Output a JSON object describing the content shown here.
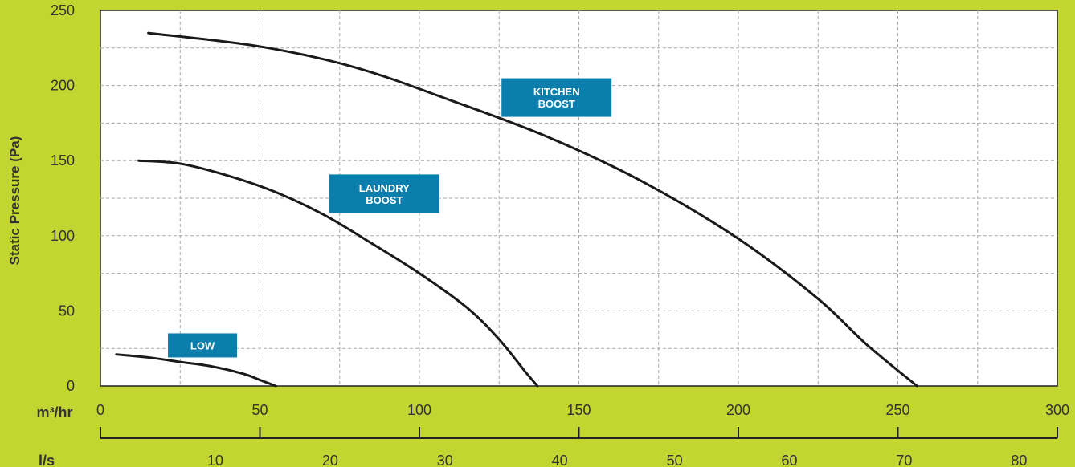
{
  "chart_data": {
    "type": "line",
    "ylabel": "Static Pressure (Pa)",
    "ylim": [
      0,
      250
    ],
    "yticks": [
      0,
      50,
      100,
      150,
      200,
      250
    ],
    "x_primary_unit": "m³/hr",
    "xlim": [
      0,
      300
    ],
    "xticks": [
      0,
      50,
      100,
      150,
      200,
      250,
      300
    ],
    "x_secondary_unit": "l/s",
    "x_secondary_ticks": [
      10,
      20,
      30,
      40,
      50,
      60,
      70,
      80
    ],
    "grid": true,
    "series": [
      {
        "name": "LOW",
        "label_lines": [
          "LOW"
        ],
        "label_at": [
          32,
          27
        ],
        "points": [
          [
            5,
            21
          ],
          [
            15,
            19
          ],
          [
            25,
            16
          ],
          [
            35,
            13
          ],
          [
            45,
            8
          ],
          [
            50,
            4
          ],
          [
            55,
            0
          ]
        ]
      },
      {
        "name": "LAUNDRY BOOST",
        "label_lines": [
          "LAUNDRY",
          "BOOST"
        ],
        "label_at": [
          89,
          128
        ],
        "points": [
          [
            12,
            150
          ],
          [
            25,
            148
          ],
          [
            40,
            140
          ],
          [
            55,
            129
          ],
          [
            70,
            114
          ],
          [
            85,
            95
          ],
          [
            100,
            75
          ],
          [
            115,
            52
          ],
          [
            125,
            31
          ],
          [
            133,
            10
          ],
          [
            137,
            0
          ]
        ]
      },
      {
        "name": "KITCHEN BOOST",
        "label_lines": [
          "KITCHEN",
          "BOOST"
        ],
        "label_at": [
          143,
          192
        ],
        "points": [
          [
            15,
            235
          ],
          [
            50,
            226
          ],
          [
            80,
            212
          ],
          [
            110,
            190
          ],
          [
            140,
            166
          ],
          [
            170,
            136
          ],
          [
            200,
            98
          ],
          [
            225,
            58
          ],
          [
            240,
            28
          ],
          [
            256,
            0
          ]
        ]
      }
    ],
    "colors": {
      "background": "#c2d530",
      "plot_area": "#ffffff",
      "curve": "#1a1a1a",
      "label_box": "#0a7fae",
      "label_text": "#ffffff",
      "grid": "#a8a8a8",
      "text": "#333333"
    }
  }
}
